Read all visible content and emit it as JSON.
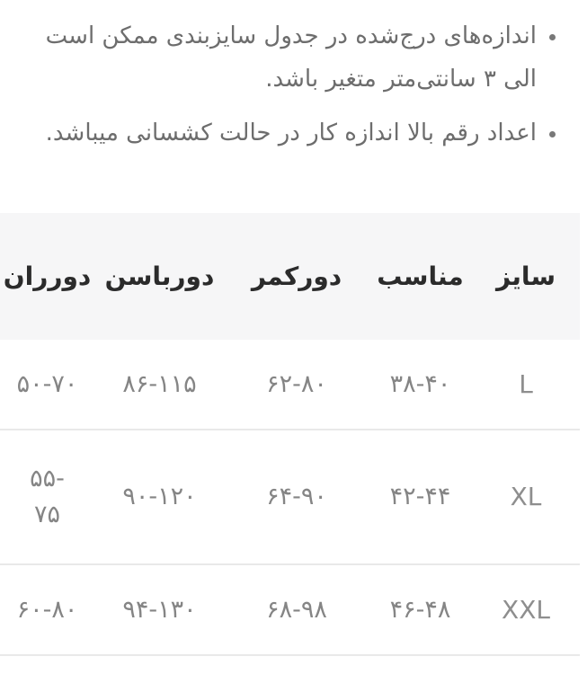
{
  "notes": {
    "items": [
      "اندازه‌های درج‌شده در جدول سایزبندی ممکن است الی ۳ سانتی‌متر متغیر باشد.",
      "اعداد رقم بالا اندازه کار در حالت کشسانی میباشد."
    ]
  },
  "size_table": {
    "headers": {
      "size": "سایز",
      "fit": "مناسب",
      "waist": "دورکمر",
      "hip": "دورباسن",
      "thigh": "دورران"
    },
    "rows": [
      {
        "size": "L",
        "fit": "۳۸-۴۰",
        "waist": "۶۲-۸۰",
        "hip": "۸۶-۱۱۵",
        "thigh": "۵۰-۷۰"
      },
      {
        "size": "XL",
        "fit": "۴۲-۴۴",
        "waist": "۶۴-۹۰",
        "hip": "۹۰-۱۲۰",
        "thigh": "۵۵-\n۷۵"
      },
      {
        "size": "XXL",
        "fit": "۴۶-۴۸",
        "waist": "۶۸-۹۸",
        "hip": "۹۴-۱۳۰",
        "thigh": "۶۰-۸۰"
      }
    ]
  },
  "colors": {
    "background": "#ffffff",
    "note_text": "#6d6d6d",
    "header_text": "#2b2b2b",
    "cell_text": "#858585",
    "size_text": "#8e8e8e",
    "header_bg": "#f6f6f7",
    "divider": "#e9e9e9"
  }
}
